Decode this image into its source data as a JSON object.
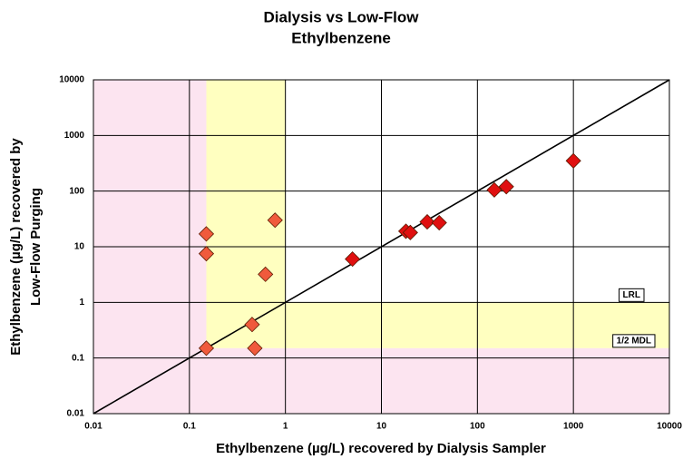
{
  "chart_data": {
    "type": "scatter",
    "title": [
      "Dialysis vs Low-Flow",
      "Ethylbenzene"
    ],
    "x_label": "Ethylbenzene (µg/L) recovered by Dialysis Sampler",
    "y_label": [
      "Ethylbenzene (µg/L) recovered by",
      "Low-Flow Purging"
    ],
    "x": [
      0.15,
      0.15,
      0.15,
      0.45,
      0.48,
      0.62,
      0.78,
      5,
      18,
      20,
      30,
      40,
      150,
      200,
      1000
    ],
    "values": [
      17,
      7.5,
      0.15,
      0.4,
      0.15,
      3.2,
      30,
      6,
      19,
      18,
      28,
      27,
      105,
      120,
      350
    ],
    "point_colors": [
      "#f05a3c",
      "#f05a3c",
      "#f05a3c",
      "#f05a3c",
      "#f05a3c",
      "#f05a3c",
      "#f05a3c",
      "#e01010",
      "#e01010",
      "#e01010",
      "#e01010",
      "#e01010",
      "#e01010",
      "#e01010",
      "#e01010"
    ],
    "xlim": [
      0.01,
      10000
    ],
    "ylim": [
      0.01,
      10000
    ],
    "xticks": [
      0.01,
      0.1,
      1,
      10,
      100,
      1000,
      10000
    ],
    "yticks": [
      0.01,
      0.1,
      1,
      10,
      100,
      1000,
      10000
    ],
    "log_x": true,
    "log_y": true,
    "grid": true,
    "one_to_one_line": true,
    "thresholds": [
      {
        "label": "LRL",
        "value": 1,
        "color": "#ffffc0"
      },
      {
        "label": "1/2 MDL",
        "value": 0.15,
        "color": "#fce4f0"
      }
    ]
  }
}
